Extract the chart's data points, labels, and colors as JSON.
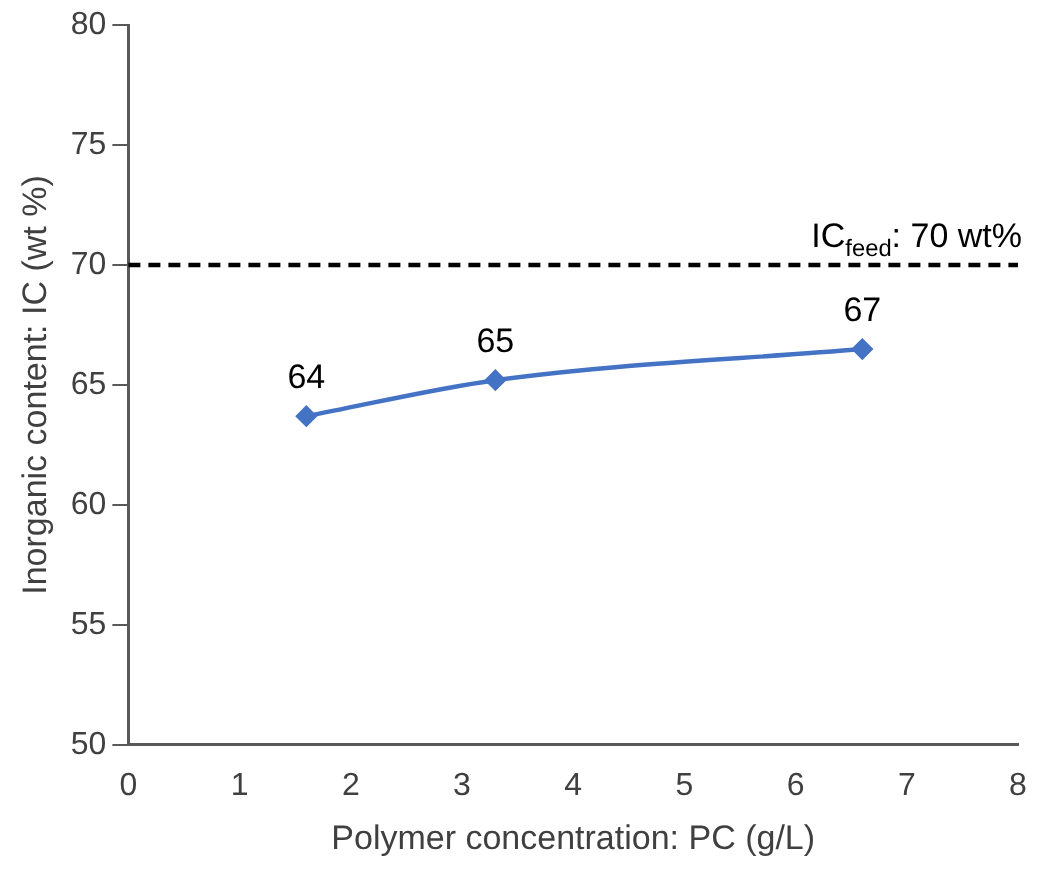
{
  "chart_data": {
    "type": "line",
    "xlabel": "Polymer concentration: PC (g/L)",
    "ylabel": "Inorganic content: IC (wt %)",
    "x": [
      1.6,
      3.3,
      6.6
    ],
    "series": [
      {
        "color": "#4472c4",
        "values": [
          63.7,
          65.2,
          66.5
        ],
        "value_labels": [
          "64",
          "65",
          "67"
        ]
      }
    ],
    "xlim": [
      0,
      8
    ],
    "xticks": [
      0,
      1,
      2,
      3,
      4,
      5,
      6,
      7,
      8
    ],
    "ylim": [
      50,
      80
    ],
    "yticks": [
      50,
      55,
      60,
      65,
      70,
      75,
      80
    ],
    "ref_lines": [
      {
        "axis": "y",
        "value": 70,
        "label": "IC$_{feed}$: 70 wt%",
        "color": "#000000",
        "line_style": "dashed"
      }
    ],
    "grid": false,
    "legend": false,
    "marker": "diamond",
    "line_style": "solid"
  }
}
